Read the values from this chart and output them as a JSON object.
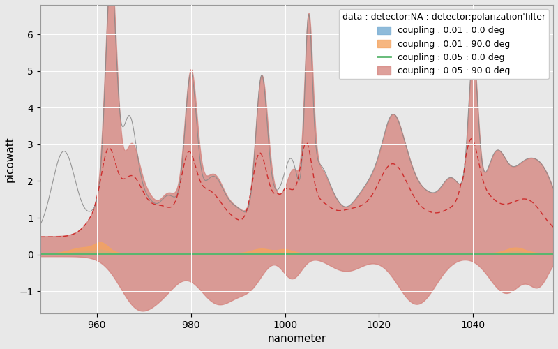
{
  "xlabel": "nanometer",
  "ylabel": "picowatt",
  "xlim": [
    948,
    1057
  ],
  "ylim": [
    -1.6,
    6.8
  ],
  "yticks": [
    -1,
    0,
    1,
    2,
    3,
    4,
    5,
    6
  ],
  "xticks": [
    960,
    980,
    1000,
    1020,
    1040
  ],
  "legend_title": "data : detector:NA : detector:polarization'filter",
  "legend_labels": [
    "coupling : 0.01 : 0.0 deg",
    "coupling : 0.01 : 90.0 deg",
    "coupling : 0.05 : 0.0 deg",
    "coupling : 0.05 : 90.0 deg"
  ],
  "color_blue": "#7bafd4",
  "color_orange": "#f4a460",
  "color_green": "#5ab56e",
  "color_pink": "#d4807a",
  "color_red_dashed": "#cc2222",
  "color_gray_line": "#888888",
  "bg_color": "#e8e8e8",
  "grid_color": "white",
  "figsize": [
    8.0,
    5.0
  ],
  "dpi": 100
}
